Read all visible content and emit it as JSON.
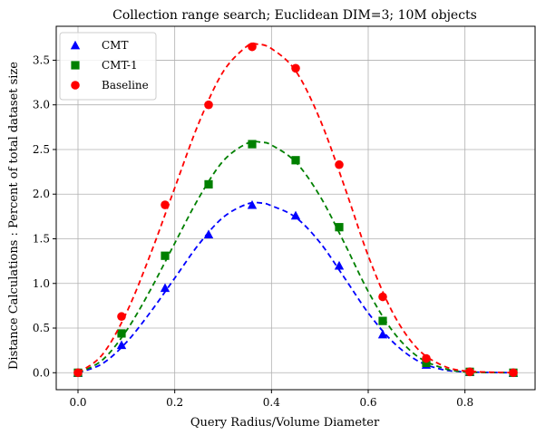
{
  "chart_data": {
    "type": "line",
    "title": "Collection range search; Euclidean DIM=3; 10M objects",
    "xlabel": "Query Radius/Volume Diameter",
    "ylabel": "Distance Calculations : Percent of total dataset size",
    "xlim": [
      -0.045,
      0.945
    ],
    "ylim": [
      -0.19,
      3.88
    ],
    "xticks": [
      0.0,
      0.2,
      0.4,
      0.6,
      0.8
    ],
    "xtick_labels": [
      "0.0",
      "0.2",
      "0.4",
      "0.6",
      "0.8"
    ],
    "yticks": [
      0.0,
      0.5,
      1.0,
      1.5,
      2.0,
      2.5,
      3.0,
      3.5
    ],
    "ytick_labels": [
      "0.0",
      "0.5",
      "1.0",
      "1.5",
      "2.0",
      "2.5",
      "3.0",
      "3.5"
    ],
    "grid": true,
    "legend_position": "top-left",
    "x": [
      0.0,
      0.09,
      0.18,
      0.27,
      0.36,
      0.45,
      0.54,
      0.63,
      0.72,
      0.81,
      0.9
    ],
    "series": [
      {
        "name": "CMT",
        "color": "#0000ff",
        "marker": "triangle",
        "values": [
          0.0,
          0.31,
          0.95,
          1.55,
          1.88,
          1.76,
          1.2,
          0.43,
          0.09,
          0.01,
          0.0
        ],
        "fit": [
          [
            0.0,
            0.0
          ],
          [
            0.05,
            0.1
          ],
          [
            0.1,
            0.34
          ],
          [
            0.15,
            0.68
          ],
          [
            0.2,
            1.06
          ],
          [
            0.25,
            1.44
          ],
          [
            0.3,
            1.74
          ],
          [
            0.35,
            1.89
          ],
          [
            0.38,
            1.9
          ],
          [
            0.4,
            1.87
          ],
          [
            0.45,
            1.74
          ],
          [
            0.5,
            1.46
          ],
          [
            0.55,
            1.07
          ],
          [
            0.6,
            0.67
          ],
          [
            0.65,
            0.35
          ],
          [
            0.7,
            0.14
          ],
          [
            0.75,
            0.04
          ],
          [
            0.8,
            0.01
          ],
          [
            0.9,
            0.0
          ]
        ]
      },
      {
        "name": "CMT-1",
        "color": "#008000",
        "marker": "square",
        "values": [
          0.0,
          0.44,
          1.31,
          2.11,
          2.56,
          2.38,
          1.63,
          0.58,
          0.11,
          0.01,
          0.0
        ],
        "fit": [
          [
            0.0,
            0.0
          ],
          [
            0.05,
            0.14
          ],
          [
            0.1,
            0.47
          ],
          [
            0.15,
            0.93
          ],
          [
            0.2,
            1.45
          ],
          [
            0.25,
            1.96
          ],
          [
            0.3,
            2.37
          ],
          [
            0.35,
            2.57
          ],
          [
            0.38,
            2.58
          ],
          [
            0.4,
            2.55
          ],
          [
            0.45,
            2.36
          ],
          [
            0.5,
            1.98
          ],
          [
            0.55,
            1.46
          ],
          [
            0.6,
            0.91
          ],
          [
            0.65,
            0.47
          ],
          [
            0.7,
            0.19
          ],
          [
            0.75,
            0.06
          ],
          [
            0.8,
            0.01
          ],
          [
            0.9,
            0.0
          ]
        ]
      },
      {
        "name": "Baseline",
        "color": "#ff0000",
        "marker": "circle",
        "values": [
          0.0,
          0.63,
          1.88,
          3.0,
          3.65,
          3.41,
          2.33,
          0.85,
          0.16,
          0.01,
          0.0
        ],
        "fit": [
          [
            0.0,
            0.0
          ],
          [
            0.05,
            0.2
          ],
          [
            0.1,
            0.67
          ],
          [
            0.15,
            1.33
          ],
          [
            0.2,
            2.07
          ],
          [
            0.25,
            2.8
          ],
          [
            0.3,
            3.37
          ],
          [
            0.35,
            3.66
          ],
          [
            0.37,
            3.68
          ],
          [
            0.4,
            3.63
          ],
          [
            0.45,
            3.38
          ],
          [
            0.5,
            2.84
          ],
          [
            0.55,
            2.1
          ],
          [
            0.6,
            1.31
          ],
          [
            0.65,
            0.68
          ],
          [
            0.7,
            0.28
          ],
          [
            0.75,
            0.09
          ],
          [
            0.8,
            0.02
          ],
          [
            0.9,
            0.0
          ]
        ]
      }
    ]
  }
}
